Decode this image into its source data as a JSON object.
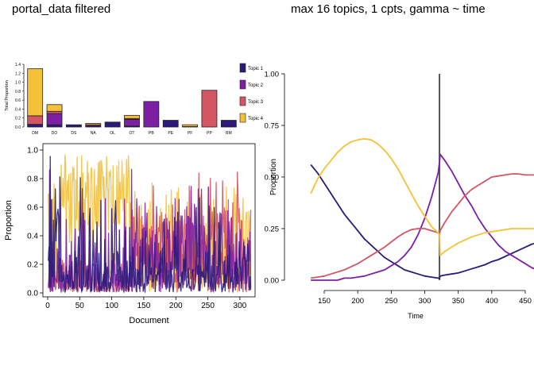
{
  "titles": {
    "left": "portal_data filtered",
    "right": "max 16 topics, 1 cpts, gamma ~ time"
  },
  "colors": {
    "topic1": "#2b1a7a",
    "topic2": "#7d1fa3",
    "topic3": "#d45563",
    "topic4": "#f3c238",
    "axis": "#000000",
    "changepoint": "#555555"
  },
  "chart_data": [
    {
      "type": "bar",
      "stacked": true,
      "categories": [
        "DM",
        "DO",
        "DS",
        "NA",
        "OL",
        "OT",
        "PB",
        "PE",
        "PF",
        "PP",
        "RM"
      ],
      "ylabel": "Total Proportion",
      "ylim": [
        0,
        1.4
      ],
      "yticks": [
        "0.0",
        "0.2",
        "0.4",
        "0.6",
        "0.8",
        "1.0",
        "1.2",
        "1.4"
      ],
      "legend_position": "right",
      "series": [
        {
          "name": "Topic 1",
          "values": [
            0.06,
            0.05,
            0.05,
            0.02,
            0.11,
            0.02,
            0.0,
            0.15,
            0.01,
            0.0,
            0.15
          ]
        },
        {
          "name": "Topic 2",
          "values": [
            0.0,
            0.25,
            0.0,
            0.03,
            0.0,
            0.15,
            0.57,
            0.0,
            0.0,
            0.0,
            0.0
          ]
        },
        {
          "name": "Topic 3",
          "values": [
            0.19,
            0.05,
            0.0,
            0.0,
            0.0,
            0.02,
            0.0,
            0.0,
            0.0,
            0.82,
            0.0
          ]
        },
        {
          "name": "Topic 4",
          "values": [
            1.05,
            0.15,
            0.0,
            0.03,
            0.0,
            0.07,
            0.0,
            0.0,
            0.04,
            0.0,
            0.0
          ]
        }
      ]
    },
    {
      "type": "line",
      "xlabel": "Document",
      "ylabel": "Proportion",
      "xlim": [
        0,
        320
      ],
      "ylim": [
        0,
        1
      ],
      "xticks": [
        "0",
        "50",
        "100",
        "150",
        "200",
        "250",
        "300"
      ],
      "yticks": [
        "0.0",
        "0.2",
        "0.4",
        "0.6",
        "0.8",
        "1.0"
      ],
      "n_documents": 317
    },
    {
      "type": "line",
      "xlabel": "Time",
      "ylabel": "Proportion",
      "xlim": [
        130,
        470
      ],
      "ylim": [
        0,
        1
      ],
      "xticks": [
        "150",
        "200",
        "250",
        "300",
        "350",
        "400",
        "450"
      ],
      "yticks": [
        "0.00",
        "0.25",
        "0.50",
        "0.75",
        "1.00"
      ],
      "changepoint": 322,
      "x": [
        130,
        140,
        150,
        160,
        170,
        180,
        190,
        200,
        210,
        220,
        230,
        240,
        250,
        260,
        270,
        280,
        290,
        300,
        310,
        320,
        322,
        323,
        330,
        340,
        350,
        360,
        370,
        380,
        390,
        400,
        410,
        420,
        430,
        440,
        450,
        460,
        468
      ],
      "series": [
        {
          "name": "Topic 1",
          "values": [
            0.56,
            0.52,
            0.47,
            0.42,
            0.37,
            0.32,
            0.28,
            0.24,
            0.2,
            0.17,
            0.14,
            0.11,
            0.09,
            0.07,
            0.05,
            0.04,
            0.03,
            0.02,
            0.015,
            0.01,
            0.008,
            0.02,
            0.025,
            0.03,
            0.035,
            0.045,
            0.055,
            0.065,
            0.075,
            0.09,
            0.1,
            0.115,
            0.13,
            0.145,
            0.16,
            0.175,
            0.18
          ]
        },
        {
          "name": "Topic 2",
          "values": [
            0.0,
            0.0,
            0.0,
            0.0,
            0.0,
            0.01,
            0.01,
            0.015,
            0.02,
            0.03,
            0.04,
            0.05,
            0.07,
            0.09,
            0.12,
            0.16,
            0.22,
            0.3,
            0.4,
            0.52,
            0.57,
            0.61,
            0.58,
            0.53,
            0.47,
            0.41,
            0.36,
            0.3,
            0.25,
            0.21,
            0.17,
            0.14,
            0.12,
            0.1,
            0.08,
            0.06,
            0.05
          ]
        },
        {
          "name": "Topic 3",
          "values": [
            0.01,
            0.015,
            0.02,
            0.03,
            0.04,
            0.05,
            0.065,
            0.08,
            0.1,
            0.12,
            0.14,
            0.16,
            0.185,
            0.21,
            0.23,
            0.245,
            0.25,
            0.25,
            0.24,
            0.23,
            0.22,
            0.24,
            0.28,
            0.33,
            0.37,
            0.41,
            0.44,
            0.46,
            0.48,
            0.5,
            0.505,
            0.51,
            0.515,
            0.515,
            0.51,
            0.51,
            0.51
          ]
        },
        {
          "name": "Topic 4",
          "values": [
            0.42,
            0.49,
            0.54,
            0.58,
            0.62,
            0.65,
            0.67,
            0.68,
            0.685,
            0.68,
            0.66,
            0.63,
            0.59,
            0.54,
            0.48,
            0.42,
            0.36,
            0.31,
            0.26,
            0.23,
            0.22,
            0.12,
            0.14,
            0.16,
            0.18,
            0.195,
            0.21,
            0.22,
            0.23,
            0.235,
            0.24,
            0.245,
            0.25,
            0.25,
            0.25,
            0.25,
            0.25
          ]
        }
      ]
    }
  ]
}
